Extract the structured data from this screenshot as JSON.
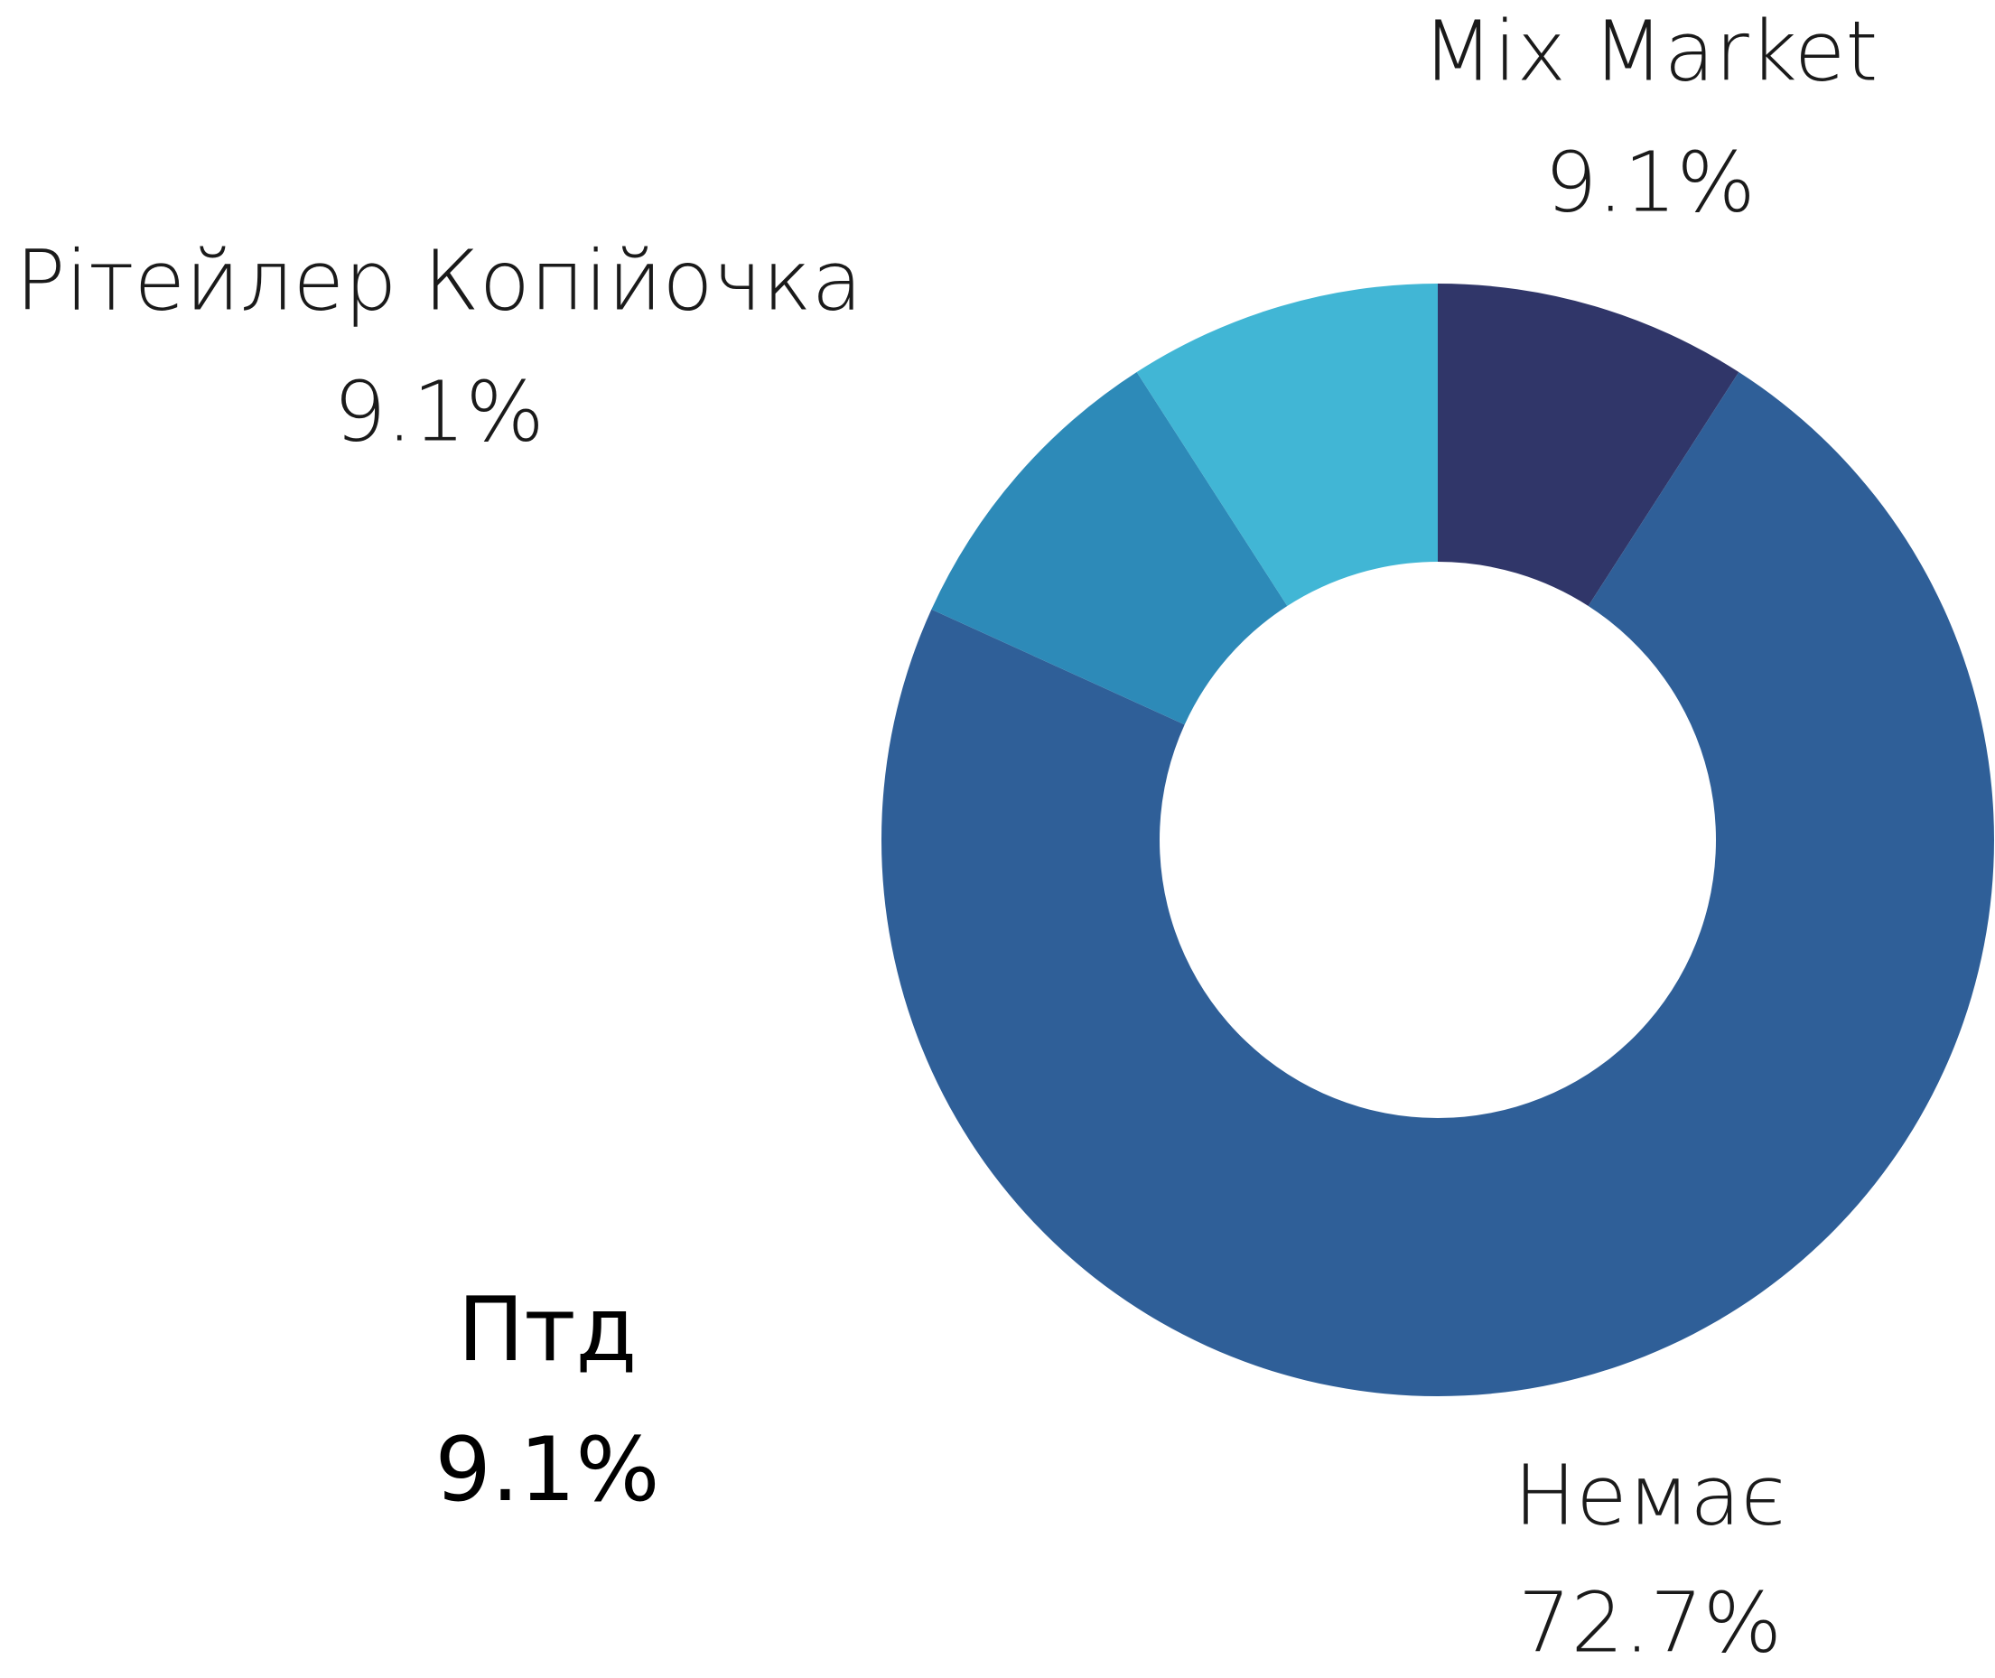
{
  "chart_data": {
    "type": "donut",
    "categories": [
      "Mix Market",
      "Немає",
      "Птд",
      "Рітейлер Копійочка"
    ],
    "values": [
      9.1,
      72.7,
      9.1,
      9.1
    ],
    "value_labels": [
      "9.1%",
      "72.7%",
      "9.1%",
      "9.1%"
    ],
    "colors": [
      "#303669",
      "#2f5f98",
      "#2d8ab8",
      "#41b6d5"
    ]
  }
}
